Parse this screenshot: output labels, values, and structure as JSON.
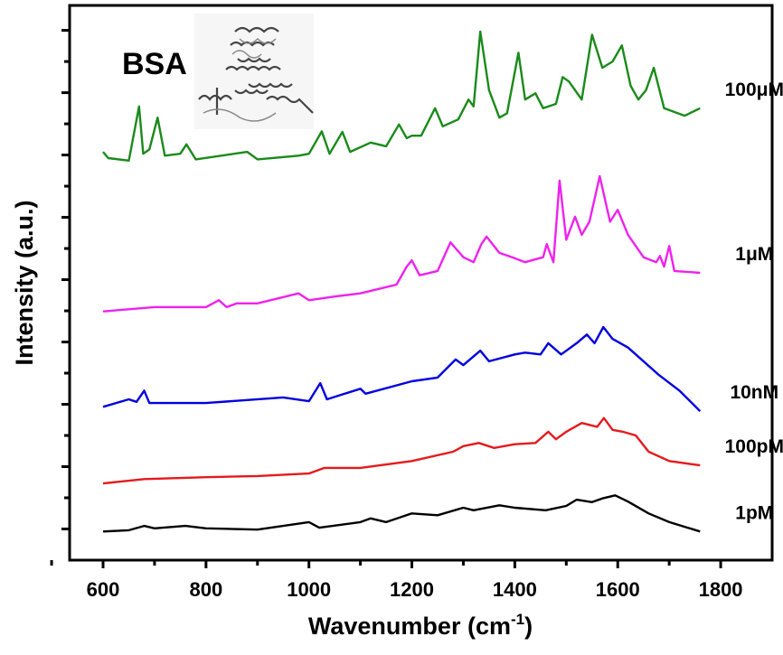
{
  "chart_data": {
    "type": "line",
    "title": "",
    "annotation": "BSA",
    "xlabel": "Wavenumber (cm",
    "xlabel_sup": "-1",
    "xlabel_end": ")",
    "ylabel": "Intensity (a.u.)",
    "xlim": [
      535,
      1900
    ],
    "ylim": [
      0,
      8.9
    ],
    "x_ticks": [
      600,
      800,
      1000,
      1200,
      1400,
      1600,
      1800
    ],
    "x_tick_labels": [
      "600",
      "800",
      "1000",
      "1200",
      "1400",
      "1600",
      "1800"
    ],
    "y_tick_labels_shown": false,
    "grid": false,
    "legend": "labels at right end of each curve",
    "series": [
      {
        "name": "1pM",
        "color": "#000000",
        "points": [
          [
            600,
            0.46
          ],
          [
            650,
            0.48
          ],
          [
            680,
            0.55
          ],
          [
            700,
            0.51
          ],
          [
            760,
            0.55
          ],
          [
            800,
            0.51
          ],
          [
            900,
            0.49
          ],
          [
            1000,
            0.61
          ],
          [
            1020,
            0.52
          ],
          [
            1100,
            0.61
          ],
          [
            1120,
            0.67
          ],
          [
            1150,
            0.61
          ],
          [
            1200,
            0.75
          ],
          [
            1250,
            0.72
          ],
          [
            1300,
            0.84
          ],
          [
            1320,
            0.8
          ],
          [
            1370,
            0.88
          ],
          [
            1400,
            0.84
          ],
          [
            1460,
            0.8
          ],
          [
            1500,
            0.87
          ],
          [
            1520,
            0.97
          ],
          [
            1550,
            0.93
          ],
          [
            1570,
            0.99
          ],
          [
            1595,
            1.04
          ],
          [
            1620,
            0.94
          ],
          [
            1660,
            0.75
          ],
          [
            1700,
            0.61
          ],
          [
            1760,
            0.46
          ]
        ]
      },
      {
        "name": "100pM",
        "color": "#e41a1c",
        "points": [
          [
            600,
            1.23
          ],
          [
            680,
            1.3
          ],
          [
            800,
            1.33
          ],
          [
            900,
            1.35
          ],
          [
            1000,
            1.39
          ],
          [
            1030,
            1.48
          ],
          [
            1100,
            1.48
          ],
          [
            1200,
            1.59
          ],
          [
            1280,
            1.74
          ],
          [
            1300,
            1.83
          ],
          [
            1330,
            1.88
          ],
          [
            1360,
            1.8
          ],
          [
            1400,
            1.86
          ],
          [
            1440,
            1.88
          ],
          [
            1465,
            2.06
          ],
          [
            1480,
            1.94
          ],
          [
            1500,
            2.06
          ],
          [
            1530,
            2.2
          ],
          [
            1560,
            2.14
          ],
          [
            1573,
            2.28
          ],
          [
            1590,
            2.09
          ],
          [
            1610,
            2.06
          ],
          [
            1635,
            2.0
          ],
          [
            1660,
            1.74
          ],
          [
            1700,
            1.59
          ],
          [
            1760,
            1.52
          ]
        ]
      },
      {
        "name": "10nM",
        "color": "#0000dd",
        "points": [
          [
            600,
            2.46
          ],
          [
            650,
            2.58
          ],
          [
            665,
            2.54
          ],
          [
            680,
            2.72
          ],
          [
            690,
            2.52
          ],
          [
            800,
            2.52
          ],
          [
            950,
            2.61
          ],
          [
            1000,
            2.55
          ],
          [
            1022,
            2.84
          ],
          [
            1035,
            2.58
          ],
          [
            1100,
            2.75
          ],
          [
            1110,
            2.67
          ],
          [
            1200,
            2.87
          ],
          [
            1250,
            2.93
          ],
          [
            1285,
            3.22
          ],
          [
            1300,
            3.13
          ],
          [
            1333,
            3.36
          ],
          [
            1350,
            3.19
          ],
          [
            1400,
            3.3
          ],
          [
            1420,
            3.33
          ],
          [
            1450,
            3.3
          ],
          [
            1465,
            3.48
          ],
          [
            1490,
            3.3
          ],
          [
            1520,
            3.48
          ],
          [
            1540,
            3.62
          ],
          [
            1555,
            3.48
          ],
          [
            1572,
            3.74
          ],
          [
            1590,
            3.55
          ],
          [
            1620,
            3.41
          ],
          [
            1680,
            2.97
          ],
          [
            1720,
            2.72
          ],
          [
            1760,
            2.39
          ]
        ]
      },
      {
        "name": "1μM",
        "color": "#ee22ee",
        "points": [
          [
            600,
            3.99
          ],
          [
            700,
            4.06
          ],
          [
            800,
            4.06
          ],
          [
            825,
            4.17
          ],
          [
            840,
            4.06
          ],
          [
            860,
            4.12
          ],
          [
            900,
            4.12
          ],
          [
            980,
            4.28
          ],
          [
            1000,
            4.17
          ],
          [
            1050,
            4.23
          ],
          [
            1100,
            4.28
          ],
          [
            1170,
            4.42
          ],
          [
            1190,
            4.71
          ],
          [
            1200,
            4.81
          ],
          [
            1215,
            4.57
          ],
          [
            1250,
            4.64
          ],
          [
            1275,
            5.1
          ],
          [
            1300,
            4.86
          ],
          [
            1320,
            4.78
          ],
          [
            1335,
            5.07
          ],
          [
            1345,
            5.19
          ],
          [
            1370,
            4.93
          ],
          [
            1395,
            4.86
          ],
          [
            1420,
            4.78
          ],
          [
            1455,
            4.86
          ],
          [
            1462,
            5.07
          ],
          [
            1475,
            4.78
          ],
          [
            1487,
            6.09
          ],
          [
            1500,
            5.14
          ],
          [
            1517,
            5.51
          ],
          [
            1530,
            5.22
          ],
          [
            1545,
            5.43
          ],
          [
            1565,
            6.16
          ],
          [
            1585,
            5.43
          ],
          [
            1600,
            5.62
          ],
          [
            1620,
            5.22
          ],
          [
            1650,
            4.86
          ],
          [
            1675,
            4.78
          ],
          [
            1682,
            4.88
          ],
          [
            1690,
            4.71
          ],
          [
            1700,
            5.04
          ],
          [
            1710,
            4.64
          ],
          [
            1760,
            4.61
          ]
        ]
      },
      {
        "name": "100μM",
        "color": "#1a8a1a",
        "points": [
          [
            600,
            6.55
          ],
          [
            610,
            6.45
          ],
          [
            650,
            6.41
          ],
          [
            670,
            7.28
          ],
          [
            678,
            6.52
          ],
          [
            690,
            6.59
          ],
          [
            706,
            7.1
          ],
          [
            720,
            6.49
          ],
          [
            750,
            6.52
          ],
          [
            762,
            6.67
          ],
          [
            780,
            6.43
          ],
          [
            880,
            6.55
          ],
          [
            900,
            6.43
          ],
          [
            980,
            6.49
          ],
          [
            1000,
            6.52
          ],
          [
            1025,
            6.88
          ],
          [
            1040,
            6.52
          ],
          [
            1065,
            6.87
          ],
          [
            1080,
            6.55
          ],
          [
            1120,
            6.7
          ],
          [
            1150,
            6.64
          ],
          [
            1175,
            6.99
          ],
          [
            1190,
            6.77
          ],
          [
            1200,
            6.81
          ],
          [
            1218,
            6.81
          ],
          [
            1245,
            7.25
          ],
          [
            1260,
            6.96
          ],
          [
            1290,
            7.07
          ],
          [
            1310,
            7.39
          ],
          [
            1320,
            7.28
          ],
          [
            1333,
            8.48
          ],
          [
            1350,
            7.54
          ],
          [
            1370,
            7.1
          ],
          [
            1385,
            7.17
          ],
          [
            1407,
            8.14
          ],
          [
            1420,
            7.39
          ],
          [
            1440,
            7.49
          ],
          [
            1455,
            7.25
          ],
          [
            1480,
            7.32
          ],
          [
            1493,
            7.75
          ],
          [
            1505,
            7.68
          ],
          [
            1530,
            7.39
          ],
          [
            1550,
            8.43
          ],
          [
            1570,
            7.9
          ],
          [
            1590,
            8.0
          ],
          [
            1608,
            8.26
          ],
          [
            1625,
            7.61
          ],
          [
            1640,
            7.39
          ],
          [
            1655,
            7.54
          ],
          [
            1670,
            7.9
          ],
          [
            1690,
            7.25
          ],
          [
            1730,
            7.13
          ],
          [
            1760,
            7.25
          ]
        ]
      }
    ]
  }
}
